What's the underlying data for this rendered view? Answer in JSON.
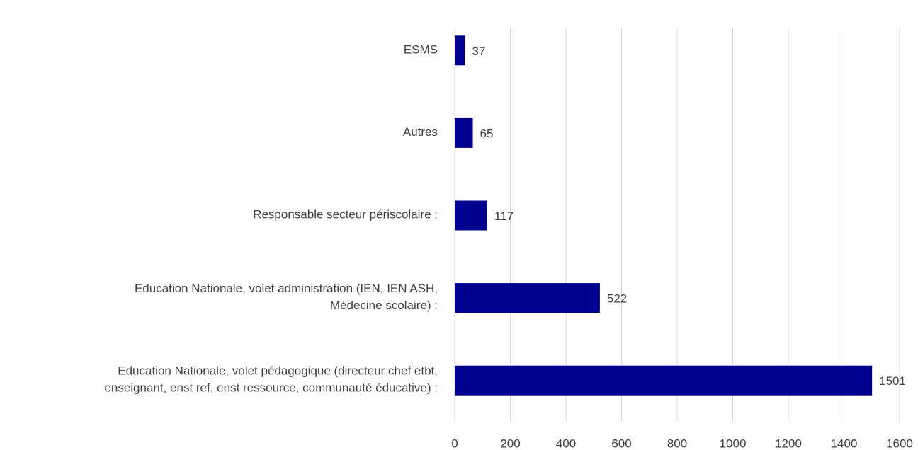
{
  "chart_data": {
    "type": "barh",
    "categories": [
      "ESMS",
      "Autres",
      "Responsable secteur périscolaire :",
      "Education Nationale, volet administration (IEN, IEN ASH, Médecine scolaire) :",
      "Education Nationale, volet pédagogique (directeur chef etbt, enseignant, enst ref, enst ressource, communauté éducative) :"
    ],
    "values": [
      37,
      65,
      117,
      522,
      1501
    ],
    "color": "#000090",
    "xlim": [
      0,
      1600
    ],
    "xticks": [
      0,
      200,
      400,
      600,
      800,
      1000,
      1200,
      1400,
      1600
    ],
    "grid": true
  }
}
